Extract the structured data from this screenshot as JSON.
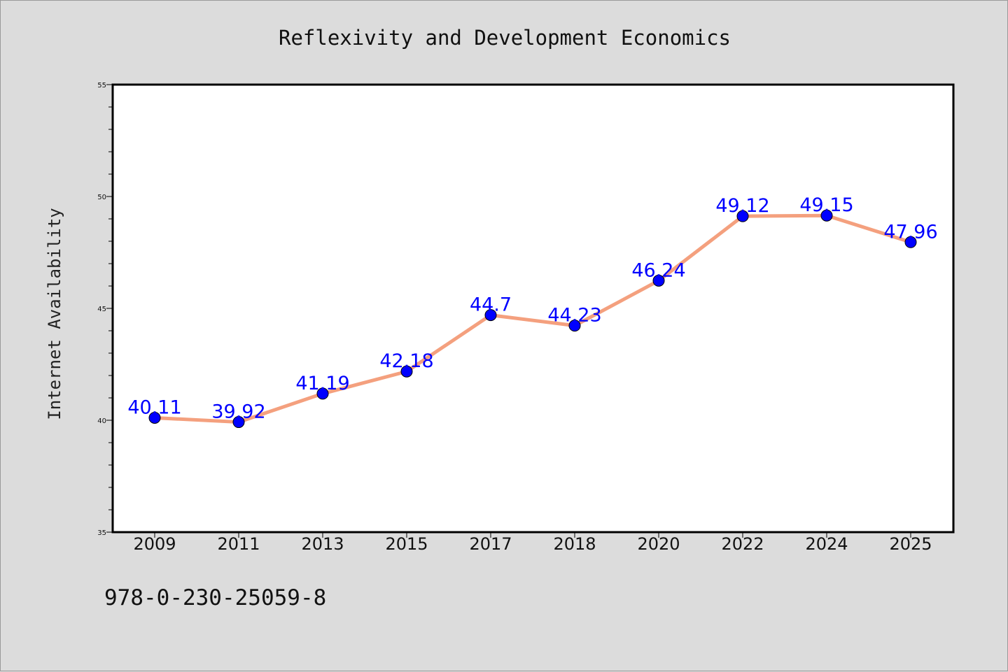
{
  "chart_data": {
    "type": "line",
    "title": "Reflexivity and Development Economics",
    "xlabel": "",
    "ylabel": "Internet Availability",
    "categories": [
      "2009",
      "2011",
      "2013",
      "2015",
      "2017",
      "2018",
      "2020",
      "2022",
      "2024",
      "2025"
    ],
    "series": [
      {
        "values": [
          40.11,
          39.92,
          41.19,
          42.18,
          44.7,
          44.23,
          46.24,
          49.12,
          49.15,
          47.96
        ],
        "data_labels": [
          "40.11",
          "39.92",
          "41.19",
          "42.18",
          "44.7",
          "44.23",
          "46.24",
          "49.12",
          "49.15",
          "47.96"
        ],
        "line_color": "#f4a07e",
        "marker_color": "#0000ff",
        "label_color": "#0000ff"
      }
    ],
    "ylim": [
      35,
      55
    ],
    "y_major_ticks": [
      35,
      40,
      45,
      50,
      55
    ],
    "y_minor_step": 1,
    "grid": false,
    "legend": "none"
  },
  "footer": {
    "isbn": "978-0-230-25059-8"
  },
  "colors": {
    "background": "#dcdcdc",
    "plot_background": "#ffffff",
    "axis": "#000000"
  }
}
